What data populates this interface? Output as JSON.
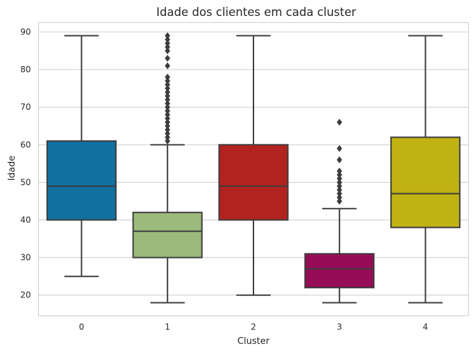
{
  "chart_data": {
    "type": "box",
    "title": "Idade dos clientes em cada cluster",
    "xlabel": "Cluster",
    "ylabel": "Idade",
    "ylim": [
      14.5,
      92.5
    ],
    "yticks": [
      20,
      30,
      40,
      50,
      60,
      70,
      80,
      90
    ],
    "grid": true,
    "categories": [
      "0",
      "1",
      "2",
      "3",
      "4"
    ],
    "boxes": [
      {
        "category": "0",
        "color": "#1170a0",
        "whisker_low": 25,
        "q1": 40,
        "median": 49,
        "q3": 61,
        "whisker_high": 89,
        "outliers": []
      },
      {
        "category": "1",
        "color": "#9bbb7c",
        "whisker_low": 18,
        "q1": 30,
        "median": 37,
        "q3": 42,
        "whisker_high": 60,
        "outliers": [
          61,
          62,
          63,
          64,
          65,
          66,
          67,
          68,
          69,
          70,
          71,
          72,
          73,
          74,
          75,
          76,
          77,
          78,
          81,
          83,
          85,
          86,
          87,
          88,
          89
        ]
      },
      {
        "category": "2",
        "color": "#b2221e",
        "whisker_low": 20,
        "q1": 40,
        "median": 49,
        "q3": 60,
        "whisker_high": 89,
        "outliers": []
      },
      {
        "category": "3",
        "color": "#970c57",
        "whisker_low": 18,
        "q1": 22,
        "median": 27,
        "q3": 31,
        "whisker_high": 43,
        "outliers": [
          45,
          46,
          47,
          48,
          49,
          50,
          51,
          52,
          53,
          56,
          59,
          66
        ]
      },
      {
        "category": "4",
        "color": "#c0b213",
        "whisker_low": 18,
        "q1": 38,
        "median": 47,
        "q3": 62,
        "whisker_high": 89,
        "outliers": []
      }
    ]
  }
}
